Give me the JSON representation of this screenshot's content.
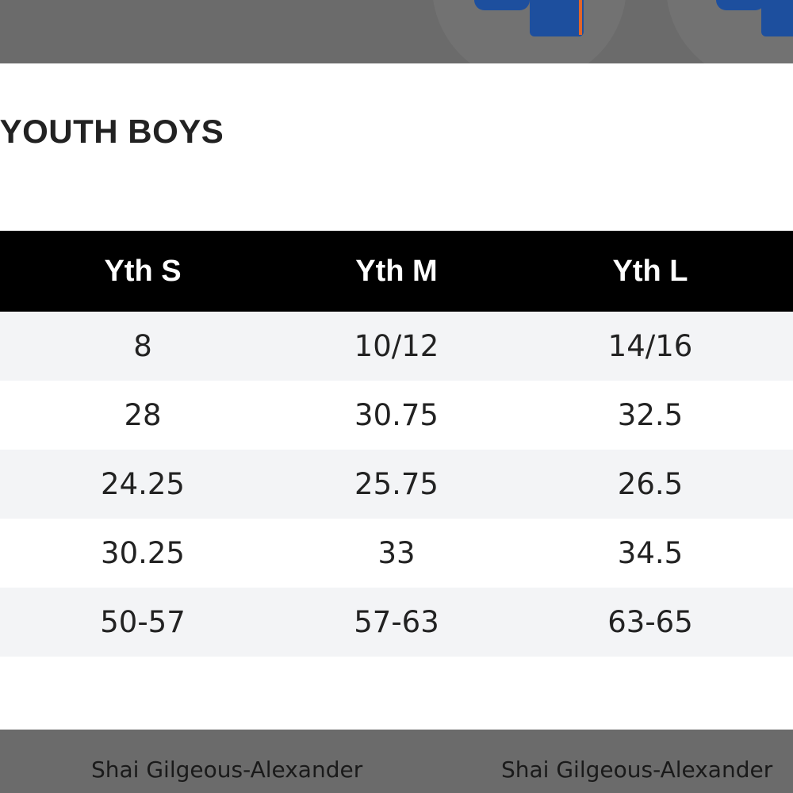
{
  "modal": {
    "title": "F YOUTH BOYS"
  },
  "size_table": {
    "headers": [
      "Yth S",
      "Yth M",
      "Yth L"
    ],
    "rows": [
      [
        "8",
        "10/12",
        "14/16"
      ],
      [
        "28",
        "30.75",
        "32.5"
      ],
      [
        "24.25",
        "25.75",
        "26.5"
      ],
      [
        "30.25",
        "33",
        "34.5"
      ],
      [
        "50-57",
        "57-63",
        "63-65"
      ]
    ]
  },
  "products": [
    {
      "name": "Shai Gilgeous-Alexander"
    },
    {
      "name": "Shai Gilgeous-Alexander"
    }
  ],
  "colors": {
    "backdrop": "#6b6b6b",
    "header_bg": "#000000",
    "header_text": "#ffffff",
    "row_shade": "#f3f4f6",
    "jersey_blue": "#1d4f9e",
    "jersey_trim": "#e0652a"
  }
}
